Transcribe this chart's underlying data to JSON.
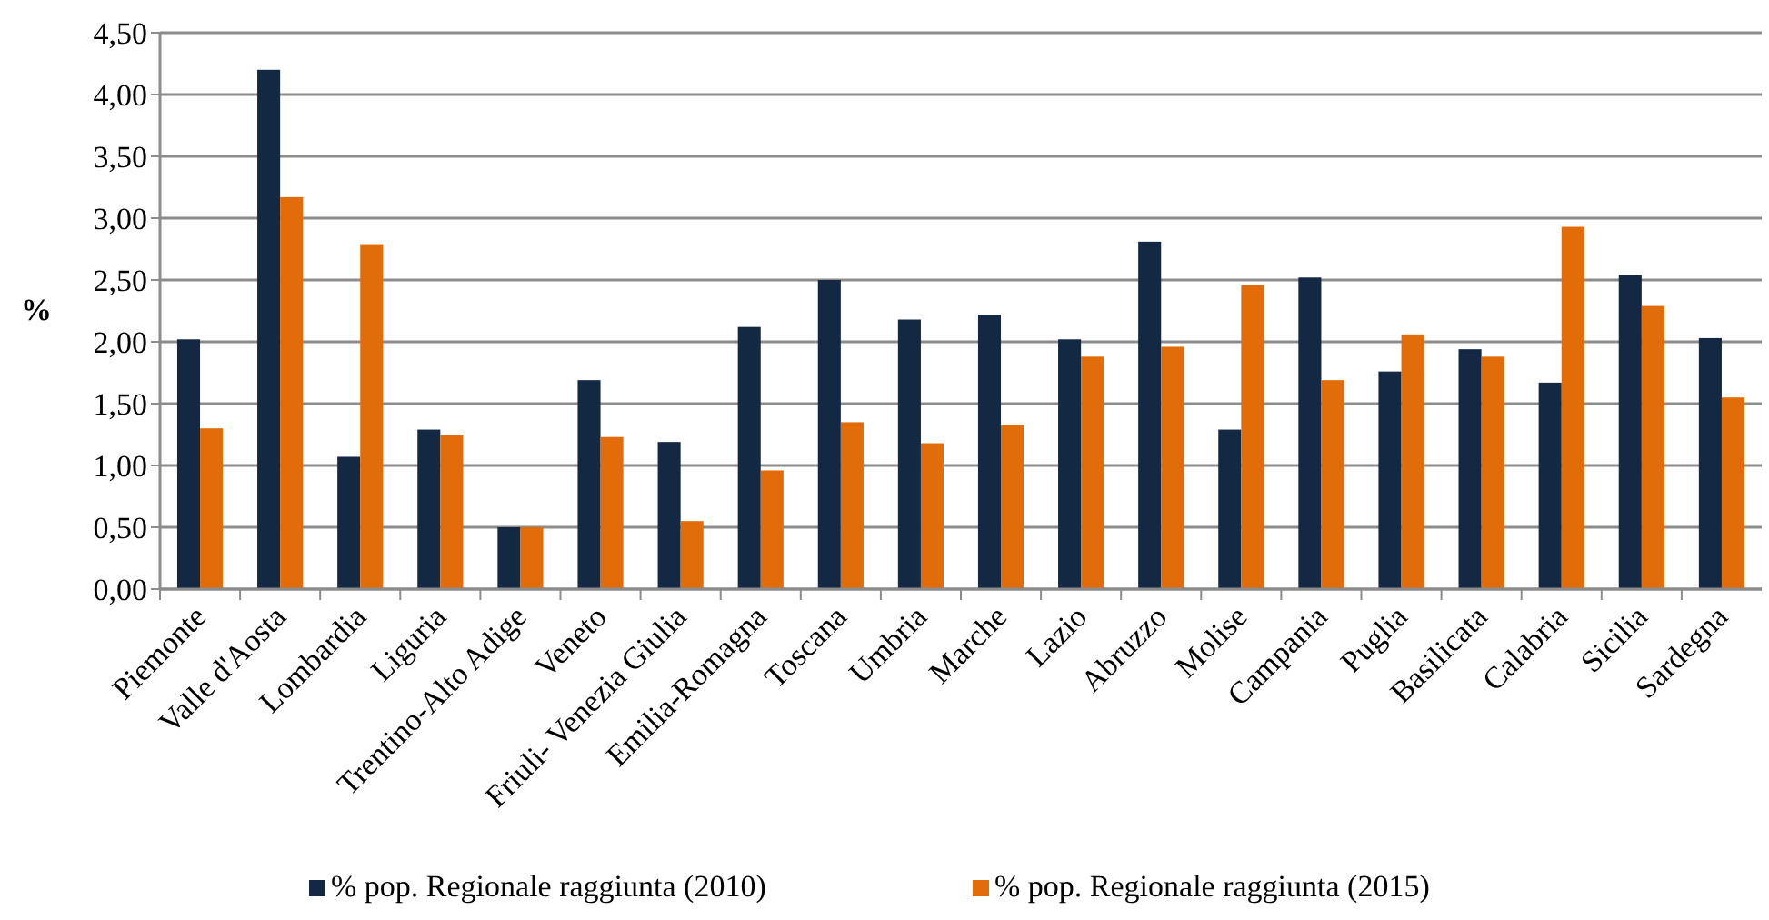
{
  "chart_data": {
    "type": "bar",
    "ylabel": "%",
    "categories": [
      "Piemonte",
      "Valle d'Aosta",
      "Lombardia",
      "Liguria",
      "Trentino-Alto Adige",
      "Veneto",
      "Friuli- Venezia Giulia",
      "Emilia-Romagna",
      "Toscana",
      "Umbria",
      "Marche",
      "Lazio",
      "Abruzzo",
      "Molise",
      "Campania",
      "Puglia",
      "Basilicata",
      "Calabria",
      "Sicilia",
      "Sardegna"
    ],
    "series": [
      {
        "name": "% pop. Regionale raggiunta (2010)",
        "color": "#132843",
        "values": [
          2.02,
          4.2,
          1.07,
          1.29,
          0.5,
          1.69,
          1.19,
          2.12,
          2.5,
          2.18,
          2.22,
          2.02,
          2.81,
          1.29,
          2.52,
          1.76,
          1.94,
          1.67,
          2.54,
          2.03
        ]
      },
      {
        "name": "% pop. Regionale raggiunta (2015)",
        "color": "#e36c0a",
        "values": [
          1.3,
          3.17,
          2.79,
          1.25,
          0.5,
          1.23,
          0.55,
          0.96,
          1.35,
          1.18,
          1.33,
          1.88,
          1.96,
          2.46,
          1.69,
          2.06,
          1.88,
          2.93,
          2.29,
          1.55
        ]
      }
    ],
    "ylim": [
      0,
      4.5
    ],
    "yticks": [
      {
        "value": 0,
        "label": "0,00"
      },
      {
        "value": 0.5,
        "label": "0,50"
      },
      {
        "value": 1,
        "label": "1,00"
      },
      {
        "value": 1.5,
        "label": "1,50"
      },
      {
        "value": 2,
        "label": "2,00"
      },
      {
        "value": 2.5,
        "label": "2,50"
      },
      {
        "value": 3,
        "label": "3,00"
      },
      {
        "value": 3.5,
        "label": "3,50"
      },
      {
        "value": 4,
        "label": "4,00"
      },
      {
        "value": 4.5,
        "label": "4,50"
      }
    ],
    "grid": "y",
    "legend": "bottom"
  }
}
